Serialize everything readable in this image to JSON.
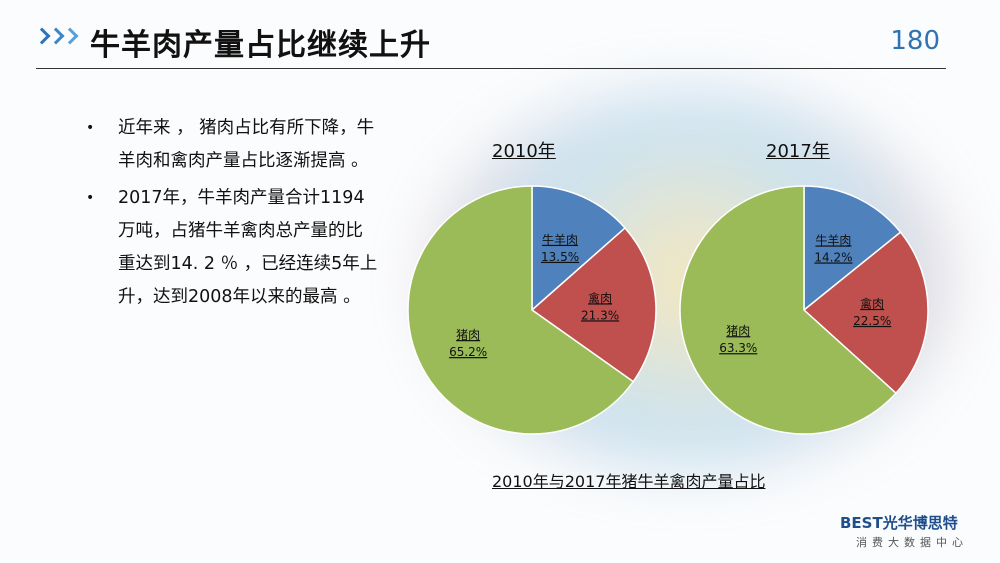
{
  "header": {
    "title": "牛羊肉产量占比继续上升",
    "page_number": "180"
  },
  "bullets": [
    "近年来 ， 猪肉占比有所下降，牛羊肉和禽肉产量占比逐渐提高 。",
    "2017年，牛羊肉产量合计1194万吨，占猪牛羊禽肉总产量的比重达到14. 2 ％ ，已经连续5年上升，达到2008年以来的最高 。"
  ],
  "chart_caption": "2010年与2017年猪牛羊禽肉产量占比",
  "logo": {
    "brand": "BEST光华博思特",
    "sub": "消费大数据中心"
  },
  "colors": {
    "beef_mutton": "#4f81bd",
    "poultry": "#c0504d",
    "pork": "#9bbb59",
    "accent": "#2e74b5"
  },
  "chart_data": [
    {
      "type": "pie",
      "title": "2010年",
      "slices": [
        {
          "label": "牛羊肉",
          "value_text": "13.5%",
          "value": 13.5
        },
        {
          "label": "禽肉",
          "value_text": "21.3%",
          "value": 21.3
        },
        {
          "label": "猪肉",
          "value_text": "65.2%",
          "value": 65.2
        }
      ]
    },
    {
      "type": "pie",
      "title": "2017年",
      "slices": [
        {
          "label": "牛羊肉",
          "value_text": "14.2%",
          "value": 14.2
        },
        {
          "label": "禽肉",
          "value_text": "22.5%",
          "value": 22.5
        },
        {
          "label": "猪肉",
          "value_text": "63.3%",
          "value": 63.3
        }
      ]
    }
  ]
}
